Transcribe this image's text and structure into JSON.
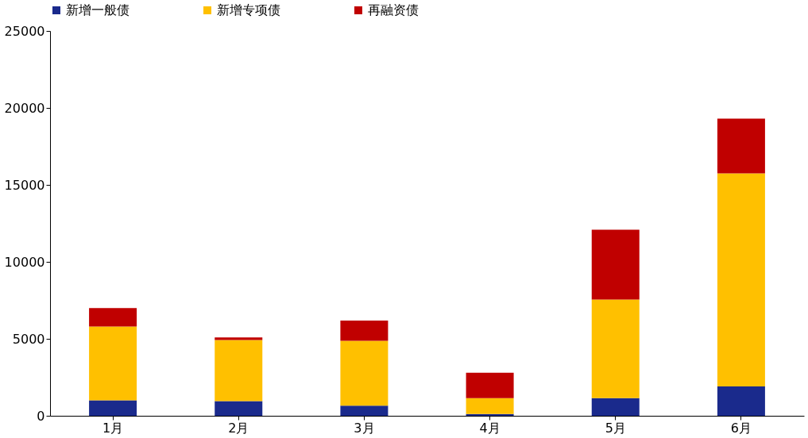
{
  "chart_data": {
    "type": "bar",
    "stacked": true,
    "categories": [
      "1月",
      "2月",
      "3月",
      "4月",
      "5月",
      "6月"
    ],
    "series": [
      {
        "name": "新增一般债",
        "color": "#1a2a8c",
        "values": [
          1000,
          950,
          660,
          110,
          1150,
          1910
        ]
      },
      {
        "name": "新增专项债",
        "color": "#ffc000",
        "values": [
          4800,
          3970,
          4210,
          1040,
          6400,
          13840
        ]
      },
      {
        "name": "再融资债",
        "color": "#c00000",
        "values": [
          1200,
          170,
          1310,
          1640,
          4540,
          3560
        ]
      }
    ],
    "ylim": [
      0,
      25000
    ],
    "yticks": [
      0,
      5000,
      10000,
      15000,
      20000,
      25000
    ],
    "grid": false,
    "legend": "top"
  }
}
